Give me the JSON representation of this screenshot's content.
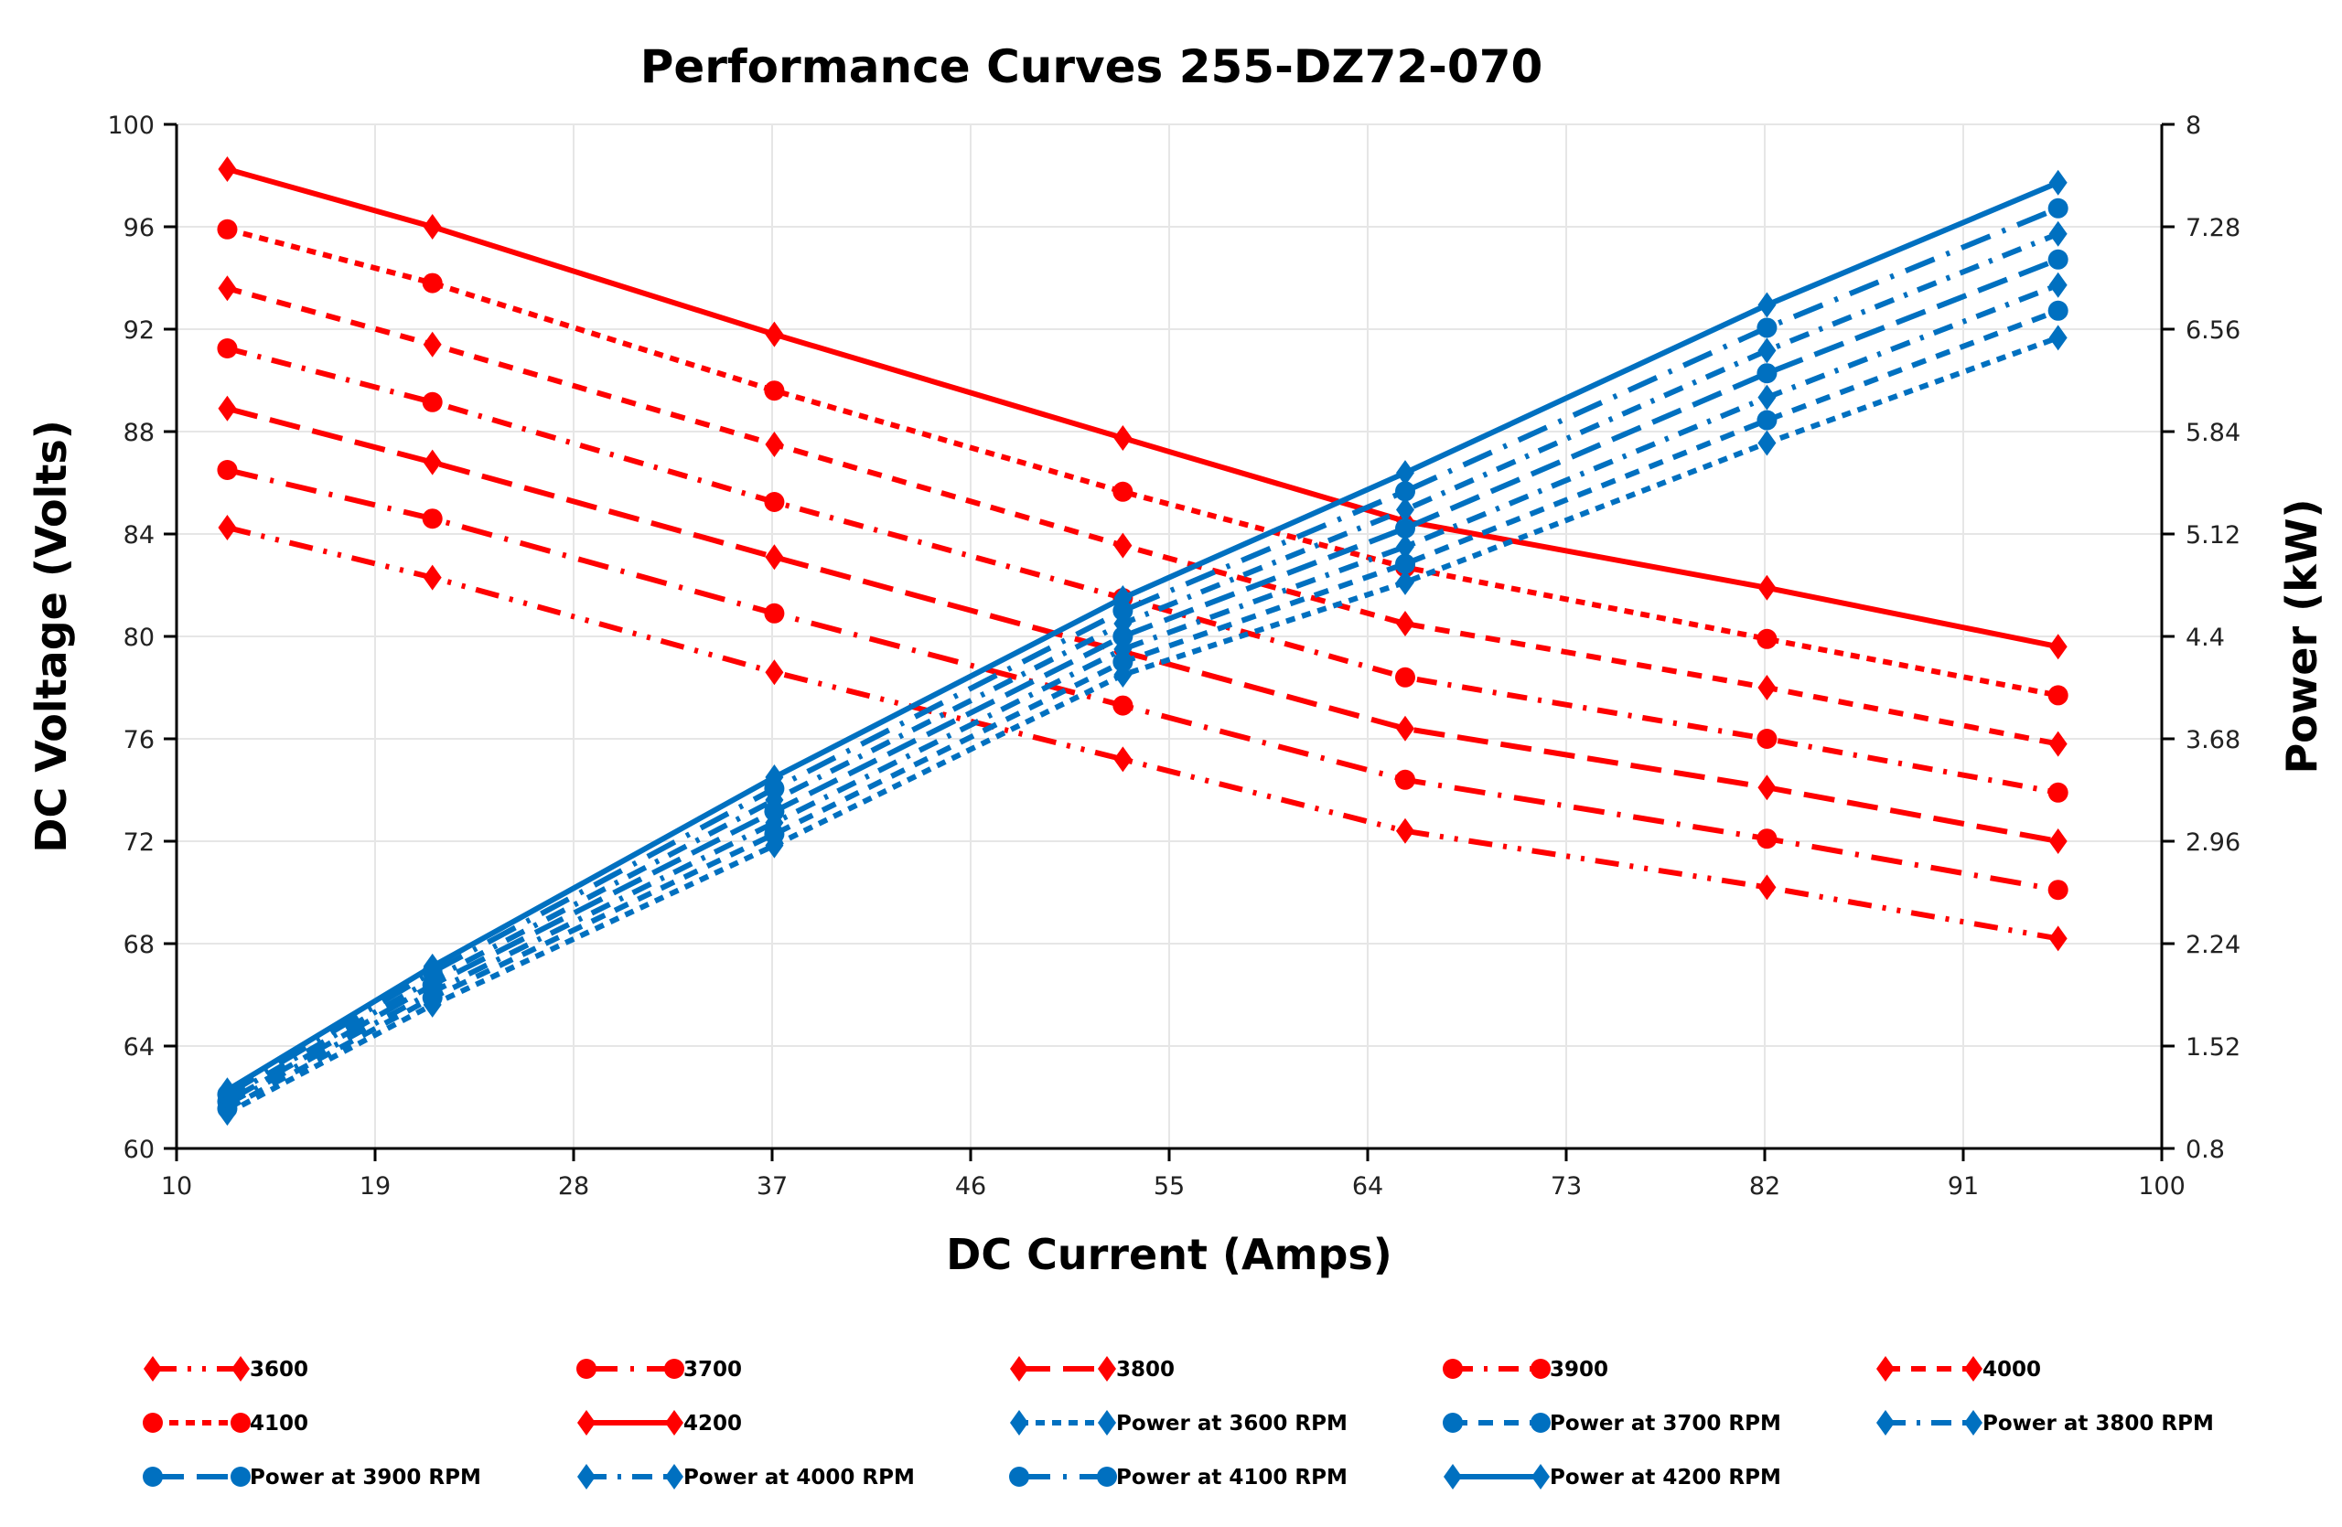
{
  "chart_data": {
    "type": "line",
    "title": "Performance Curves 255-DZ72-070",
    "xlabel": "DC Current (Amps)",
    "ylabel": "DC Voltage (Volts)",
    "y2label": "Power (kW)",
    "xlim": [
      10,
      100
    ],
    "ylim": [
      60,
      100
    ],
    "y2lim": [
      0.8,
      8
    ],
    "xticks": [
      "10",
      "19",
      "28",
      "37",
      "46",
      "55",
      "64",
      "73",
      "82",
      "91",
      "100"
    ],
    "yticks": [
      "60",
      "64",
      "68",
      "72",
      "76",
      "80",
      "84",
      "88",
      "92",
      "96",
      "100"
    ],
    "y2ticks": [
      "0.8",
      "1.52",
      "2.24",
      "2.96",
      "3.68",
      "4.4",
      "5.12",
      "5.84",
      "6.56",
      "7.28",
      "8"
    ],
    "grid": true,
    "legend_position": "bottom",
    "x": [
      12.3,
      21.6,
      37.1,
      52.9,
      65.7,
      82.1,
      95.3
    ],
    "colors": {
      "voltage": "#ff0000",
      "power": "#0070c0"
    },
    "series": [
      {
        "name": "3600",
        "axis": "left",
        "style": "dash-dot-dot",
        "marker": "diamond",
        "values": [
          84.25,
          82.3,
          78.6,
          75.2,
          72.4,
          70.2,
          68.2
        ]
      },
      {
        "name": "3700",
        "axis": "left",
        "style": "long-dash-dot",
        "marker": "circle",
        "values": [
          86.5,
          84.6,
          80.9,
          77.3,
          74.4,
          72.1,
          70.1
        ]
      },
      {
        "name": "3800",
        "axis": "left",
        "style": "long-dash",
        "marker": "diamond",
        "values": [
          88.9,
          86.8,
          83.1,
          79.4,
          76.4,
          74.1,
          72.0
        ]
      },
      {
        "name": "3900",
        "axis": "left",
        "style": "dash-dot",
        "marker": "circle",
        "values": [
          91.25,
          89.15,
          85.25,
          81.5,
          78.4,
          76.0,
          73.9
        ]
      },
      {
        "name": "4000",
        "axis": "left",
        "style": "dash",
        "marker": "diamond",
        "values": [
          93.6,
          91.4,
          87.5,
          83.55,
          80.5,
          78.0,
          75.8
        ]
      },
      {
        "name": "4100",
        "axis": "left",
        "style": "short-dash",
        "marker": "circle",
        "values": [
          95.9,
          93.8,
          89.6,
          85.65,
          82.7,
          79.9,
          77.7
        ]
      },
      {
        "name": "4200",
        "axis": "left",
        "style": "solid",
        "marker": "diamond",
        "values": [
          98.25,
          96.0,
          91.8,
          87.75,
          84.5,
          81.9,
          79.6
        ]
      },
      {
        "name": "Power at 3600 RPM",
        "axis": "right",
        "style": "short-dash",
        "marker": "diamond",
        "values": [
          1.05,
          1.81,
          2.93,
          4.13,
          4.78,
          5.76,
          6.5
        ]
      },
      {
        "name": "Power at 3700 RPM",
        "axis": "right",
        "style": "dash",
        "marker": "circle",
        "values": [
          1.08,
          1.86,
          3.01,
          4.22,
          4.91,
          5.92,
          6.69
        ]
      },
      {
        "name": "Power at 3800 RPM",
        "axis": "right",
        "style": "dash-dot",
        "marker": "diamond",
        "values": [
          1.11,
          1.9,
          3.09,
          4.31,
          5.03,
          6.08,
          6.87
        ]
      },
      {
        "name": "Power at 3900 RPM",
        "axis": "right",
        "style": "long-dash",
        "marker": "circle",
        "values": [
          1.13,
          1.95,
          3.17,
          4.4,
          5.16,
          6.25,
          7.05
        ]
      },
      {
        "name": "Power at 4000 RPM",
        "axis": "right",
        "style": "dash-dot",
        "marker": "diamond",
        "values": [
          1.16,
          1.99,
          3.25,
          4.49,
          5.29,
          6.41,
          7.23
        ]
      },
      {
        "name": "Power at 4100 RPM",
        "axis": "right",
        "style": "long-dash-dot",
        "marker": "circle",
        "values": [
          1.18,
          2.04,
          3.33,
          4.58,
          5.42,
          6.57,
          7.41
        ]
      },
      {
        "name": "Power at 4200 RPM",
        "axis": "right",
        "style": "solid",
        "marker": "diamond",
        "values": [
          1.21,
          2.08,
          3.41,
          4.67,
          5.55,
          6.73,
          7.59
        ]
      }
    ]
  }
}
